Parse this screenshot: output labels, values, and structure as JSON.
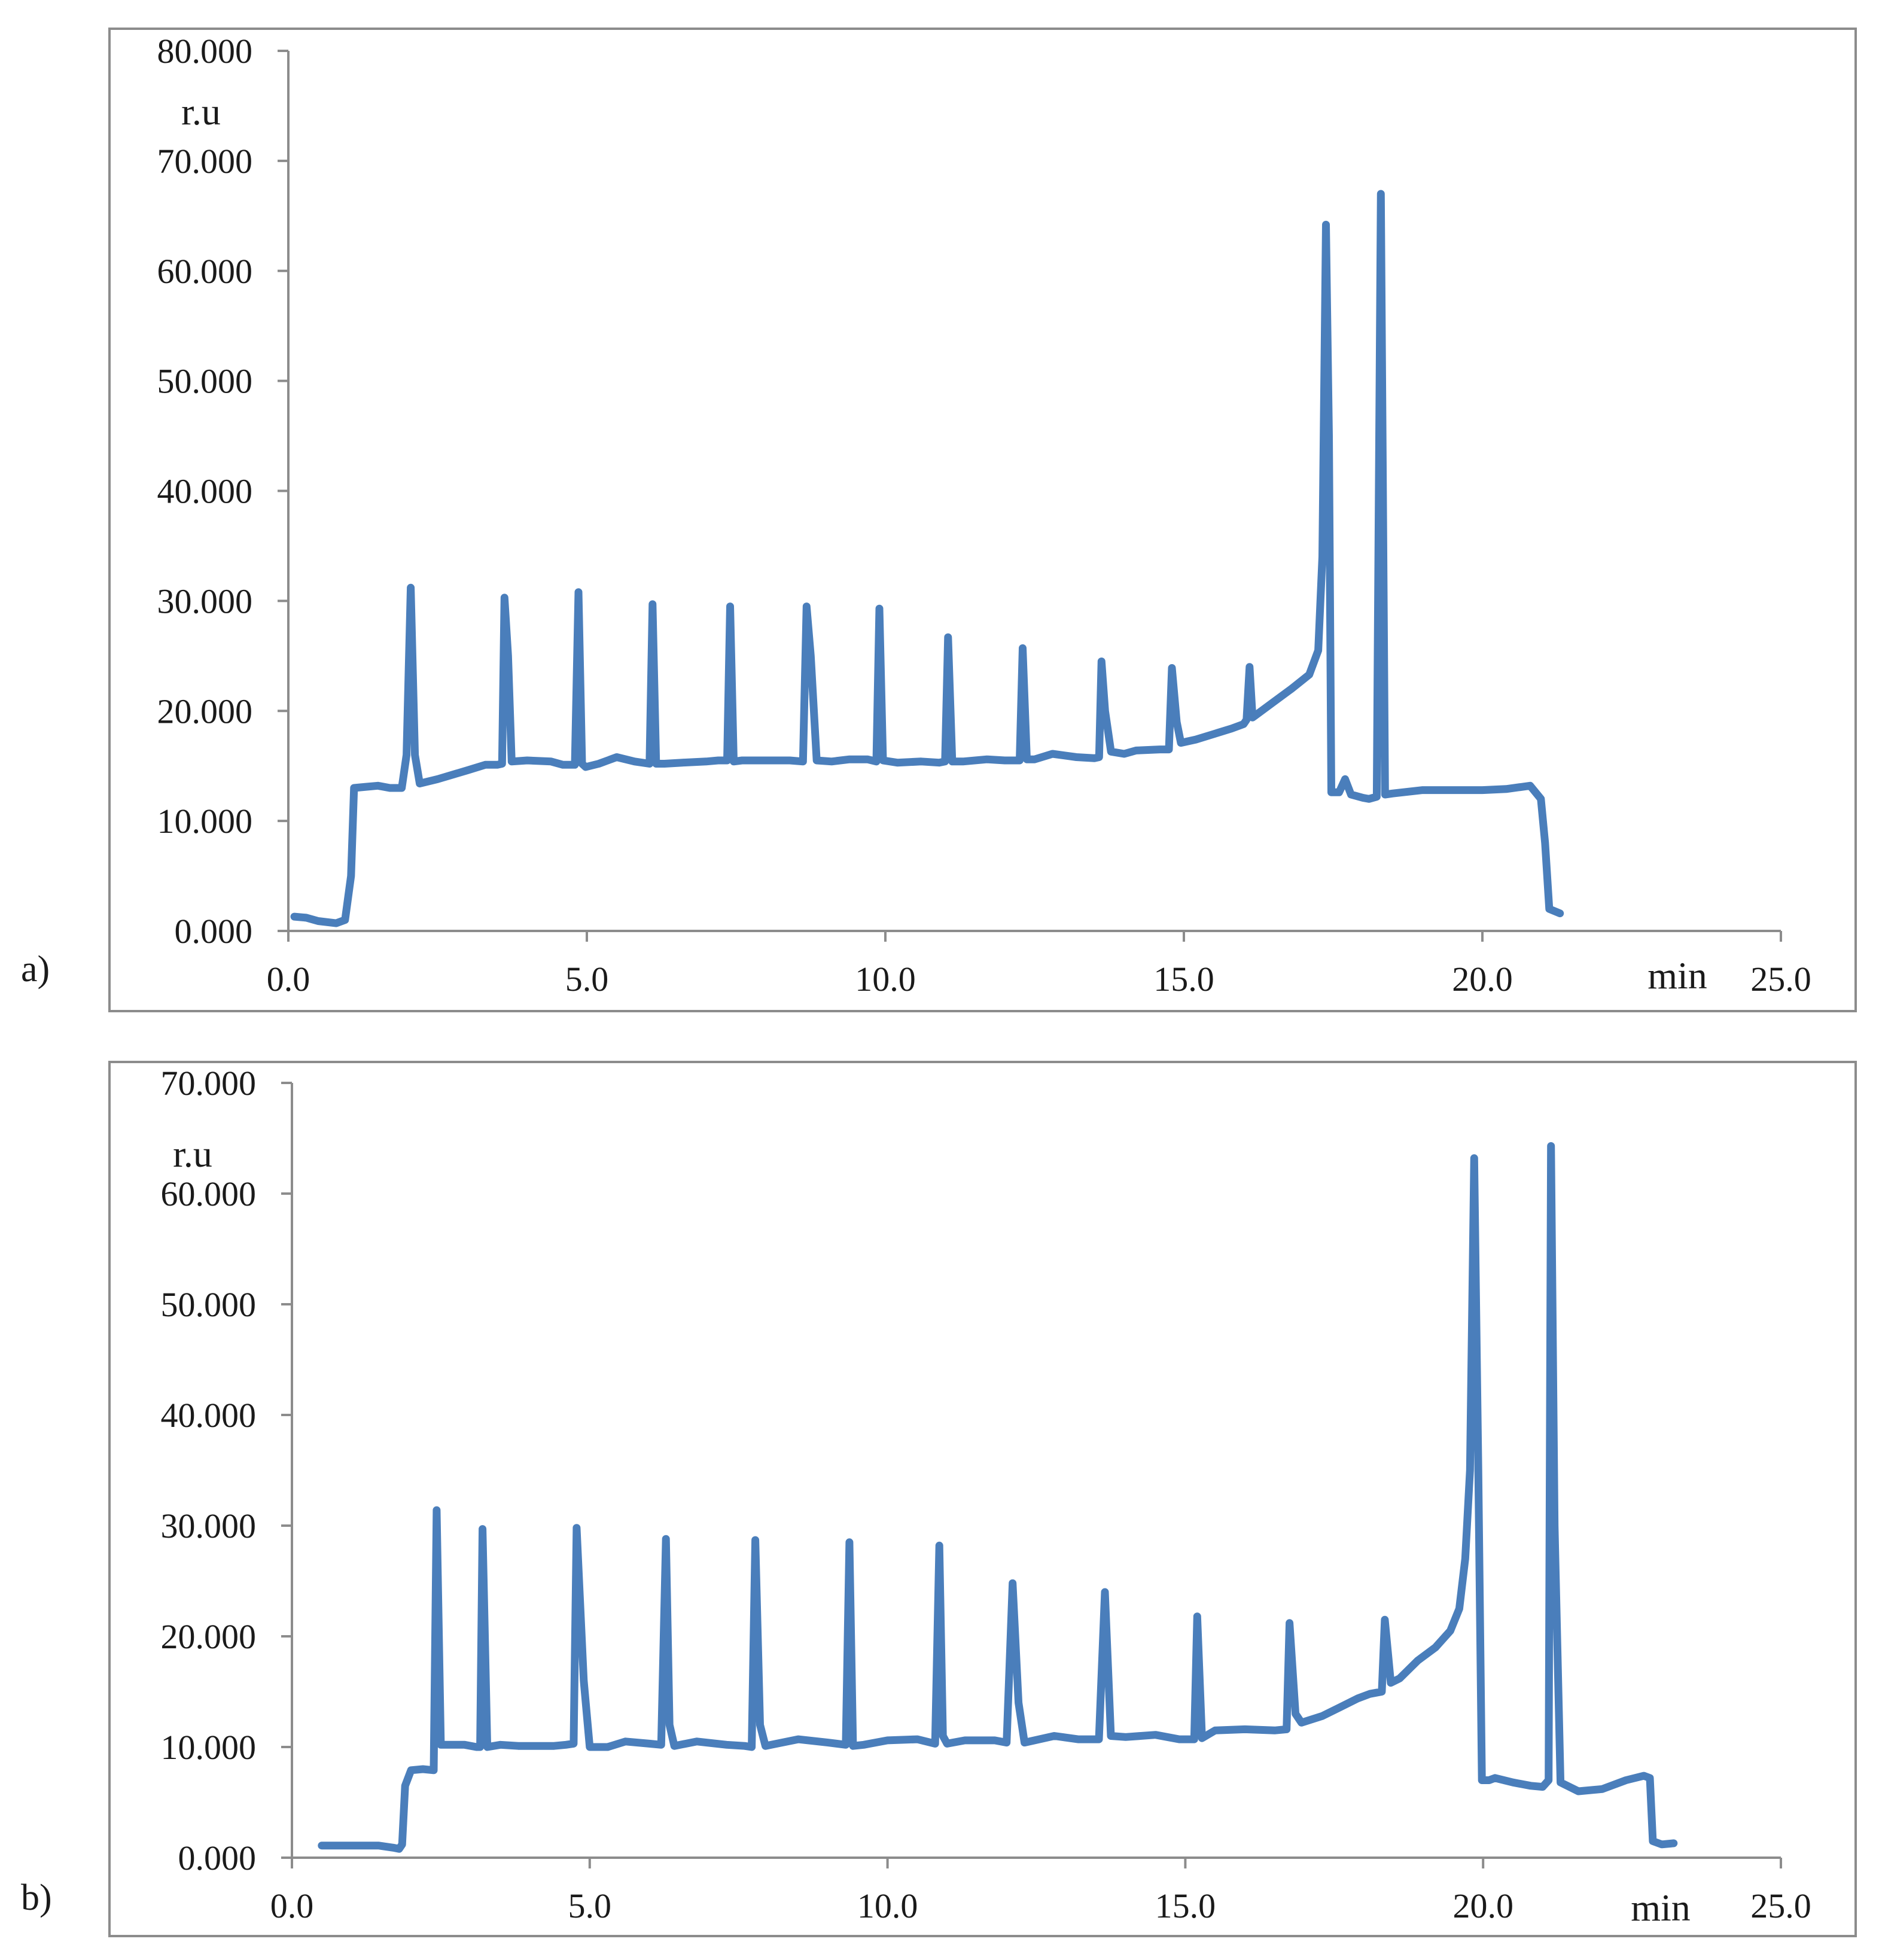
{
  "chart_data": [
    {
      "type": "line",
      "panel_label": "a)",
      "ylabel": "r.u",
      "xlabel": "min",
      "xlim": [
        0,
        25
      ],
      "ylim": [
        0,
        80
      ],
      "x_ticks": [
        "0.0",
        "5.0",
        "10.0",
        "15.0",
        "20.0",
        "25.0"
      ],
      "y_ticks": [
        "0.000",
        "10.000",
        "20.000",
        "30.000",
        "40.000",
        "50.000",
        "60.000",
        "70.000",
        "80.000"
      ],
      "color": "#4a7ebb",
      "series": [
        {
          "points": [
            [
              0.1,
              1.3
            ],
            [
              0.3,
              1.2
            ],
            [
              0.5,
              0.9
            ],
            [
              0.8,
              0.7
            ],
            [
              0.95,
              1.0
            ],
            [
              1.05,
              5
            ],
            [
              1.1,
              13
            ],
            [
              1.3,
              13.1
            ],
            [
              1.5,
              13.2
            ],
            [
              1.7,
              13.0
            ],
            [
              1.9,
              13.0
            ],
            [
              1.98,
              16
            ],
            [
              2.05,
              31.2
            ],
            [
              2.12,
              16
            ],
            [
              2.2,
              13.4
            ],
            [
              2.5,
              13.8
            ],
            [
              3.0,
              14.6
            ],
            [
              3.3,
              15.1
            ],
            [
              3.5,
              15.1
            ],
            [
              3.58,
              15.2
            ],
            [
              3.62,
              30.3
            ],
            [
              3.68,
              25
            ],
            [
              3.74,
              15.4
            ],
            [
              4.0,
              15.5
            ],
            [
              4.4,
              15.4
            ],
            [
              4.6,
              15.1
            ],
            [
              4.8,
              15.1
            ],
            [
              4.86,
              30.8
            ],
            [
              4.92,
              15.2
            ],
            [
              4.98,
              14.9
            ],
            [
              5.2,
              15.2
            ],
            [
              5.5,
              15.8
            ],
            [
              5.8,
              15.4
            ],
            [
              6.05,
              15.2
            ],
            [
              6.1,
              29.7
            ],
            [
              6.16,
              15.2
            ],
            [
              6.3,
              15.2
            ],
            [
              6.6,
              15.3
            ],
            [
              7.0,
              15.4
            ],
            [
              7.2,
              15.5
            ],
            [
              7.35,
              15.5
            ],
            [
              7.4,
              29.5
            ],
            [
              7.46,
              15.4
            ],
            [
              7.6,
              15.5
            ],
            [
              8.0,
              15.5
            ],
            [
              8.4,
              15.5
            ],
            [
              8.62,
              15.4
            ],
            [
              8.68,
              29.5
            ],
            [
              8.75,
              25
            ],
            [
              8.85,
              15.5
            ],
            [
              9.1,
              15.4
            ],
            [
              9.4,
              15.6
            ],
            [
              9.7,
              15.6
            ],
            [
              9.85,
              15.4
            ],
            [
              9.9,
              29.3
            ],
            [
              9.96,
              15.5
            ],
            [
              10.2,
              15.3
            ],
            [
              10.6,
              15.4
            ],
            [
              10.9,
              15.3
            ],
            [
              11.0,
              15.4
            ],
            [
              11.05,
              26.7
            ],
            [
              11.12,
              15.4
            ],
            [
              11.3,
              15.4
            ],
            [
              11.7,
              15.6
            ],
            [
              12.0,
              15.5
            ],
            [
              12.25,
              15.5
            ],
            [
              12.3,
              25.7
            ],
            [
              12.37,
              15.6
            ],
            [
              12.5,
              15.6
            ],
            [
              12.8,
              16.1
            ],
            [
              13.2,
              15.8
            ],
            [
              13.5,
              15.7
            ],
            [
              13.58,
              15.8
            ],
            [
              13.62,
              24.5
            ],
            [
              13.68,
              20
            ],
            [
              13.78,
              16.3
            ],
            [
              14.0,
              16.1
            ],
            [
              14.2,
              16.4
            ],
            [
              14.6,
              16.5
            ],
            [
              14.75,
              16.5
            ],
            [
              14.8,
              23.9
            ],
            [
              14.88,
              19
            ],
            [
              14.95,
              17.1
            ],
            [
              15.2,
              17.4
            ],
            [
              15.5,
              17.9
            ],
            [
              15.8,
              18.4
            ],
            [
              16.0,
              18.8
            ],
            [
              16.05,
              19.2
            ],
            [
              16.1,
              24.0
            ],
            [
              16.15,
              19.4
            ],
            [
              16.2,
              19.6
            ],
            [
              16.5,
              20.8
            ],
            [
              16.8,
              22.0
            ],
            [
              17.1,
              23.3
            ],
            [
              17.25,
              25.5
            ],
            [
              17.32,
              34
            ],
            [
              17.38,
              64.2
            ],
            [
              17.43,
              45
            ],
            [
              17.47,
              12.6
            ],
            [
              17.6,
              12.6
            ],
            [
              17.7,
              13.8
            ],
            [
              17.8,
              12.4
            ],
            [
              18.0,
              12.1
            ],
            [
              18.1,
              12.0
            ],
            [
              18.23,
              12.2
            ],
            [
              18.3,
              67.0
            ],
            [
              18.37,
              12.4
            ],
            [
              18.5,
              12.5
            ],
            [
              19.0,
              12.8
            ],
            [
              19.5,
              12.8
            ],
            [
              20.0,
              12.8
            ],
            [
              20.4,
              12.9
            ],
            [
              20.8,
              13.2
            ],
            [
              20.98,
              12.0
            ],
            [
              21.05,
              8
            ],
            [
              21.12,
              2.0
            ],
            [
              21.3,
              1.6
            ]
          ]
        }
      ]
    },
    {
      "type": "line",
      "panel_label": "b)",
      "ylabel": "r.u",
      "xlabel": "min",
      "xlim": [
        0,
        25
      ],
      "ylim": [
        0,
        70
      ],
      "x_ticks": [
        "0.0",
        "5.0",
        "10.0",
        "15.0",
        "20.0",
        "25.0"
      ],
      "y_ticks": [
        "0.000",
        "10.000",
        "20.000",
        "30.000",
        "40.000",
        "50.000",
        "60.000",
        "70.000"
      ],
      "color": "#4a7ebb",
      "series": [
        {
          "points": [
            [
              0.5,
              1.1
            ],
            [
              1.0,
              1.1
            ],
            [
              1.45,
              1.1
            ],
            [
              1.7,
              0.9
            ],
            [
              1.8,
              0.8
            ],
            [
              1.85,
              1.2
            ],
            [
              1.9,
              6.5
            ],
            [
              2.0,
              7.9
            ],
            [
              2.2,
              8.0
            ],
            [
              2.38,
              7.9
            ],
            [
              2.43,
              31.4
            ],
            [
              2.5,
              10.2
            ],
            [
              2.9,
              10.2
            ],
            [
              3.1,
              10.0
            ],
            [
              3.16,
              10.0
            ],
            [
              3.2,
              29.7
            ],
            [
              3.28,
              10.0
            ],
            [
              3.5,
              10.2
            ],
            [
              3.8,
              10.1
            ],
            [
              4.4,
              10.1
            ],
            [
              4.6,
              10.2
            ],
            [
              4.73,
              10.3
            ],
            [
              4.78,
              29.8
            ],
            [
              4.9,
              16
            ],
            [
              5.0,
              10.0
            ],
            [
              5.3,
              10.0
            ],
            [
              5.6,
              10.5
            ],
            [
              6.0,
              10.3
            ],
            [
              6.2,
              10.2
            ],
            [
              6.28,
              28.8
            ],
            [
              6.34,
              12
            ],
            [
              6.42,
              10.1
            ],
            [
              6.8,
              10.5
            ],
            [
              7.3,
              10.2
            ],
            [
              7.6,
              10.1
            ],
            [
              7.72,
              10.0
            ],
            [
              7.78,
              28.7
            ],
            [
              7.86,
              12
            ],
            [
              7.95,
              10.1
            ],
            [
              8.5,
              10.7
            ],
            [
              9.0,
              10.4
            ],
            [
              9.3,
              10.2
            ],
            [
              9.36,
              28.5
            ],
            [
              9.42,
              10.1
            ],
            [
              9.6,
              10.2
            ],
            [
              10.0,
              10.6
            ],
            [
              10.5,
              10.7
            ],
            [
              10.8,
              10.3
            ],
            [
              10.87,
              28.2
            ],
            [
              10.93,
              11
            ],
            [
              11.0,
              10.3
            ],
            [
              11.3,
              10.6
            ],
            [
              11.8,
              10.6
            ],
            [
              12.0,
              10.4
            ],
            [
              12.1,
              24.8
            ],
            [
              12.2,
              14
            ],
            [
              12.3,
              10.4
            ],
            [
              12.8,
              11.0
            ],
            [
              13.2,
              10.7
            ],
            [
              13.55,
              10.7
            ],
            [
              13.65,
              24.0
            ],
            [
              13.75,
              11.0
            ],
            [
              14.0,
              10.9
            ],
            [
              14.5,
              11.1
            ],
            [
              14.9,
              10.7
            ],
            [
              15.15,
              10.7
            ],
            [
              15.2,
              21.8
            ],
            [
              15.28,
              10.8
            ],
            [
              15.5,
              11.5
            ],
            [
              16.0,
              11.6
            ],
            [
              16.5,
              11.5
            ],
            [
              16.7,
              11.6
            ],
            [
              16.75,
              21.2
            ],
            [
              16.85,
              13
            ],
            [
              16.95,
              12.2
            ],
            [
              17.3,
              12.8
            ],
            [
              17.6,
              13.6
            ],
            [
              17.9,
              14.4
            ],
            [
              18.1,
              14.8
            ],
            [
              18.3,
              15.0
            ],
            [
              18.35,
              21.5
            ],
            [
              18.45,
              15.8
            ],
            [
              18.6,
              16.2
            ],
            [
              18.9,
              17.8
            ],
            [
              19.2,
              19.0
            ],
            [
              19.45,
              20.5
            ],
            [
              19.6,
              22.5
            ],
            [
              19.7,
              27
            ],
            [
              19.78,
              35
            ],
            [
              19.85,
              63.2
            ],
            [
              19.92,
              35
            ],
            [
              19.98,
              7.0
            ],
            [
              20.1,
              7.0
            ],
            [
              20.2,
              7.2
            ],
            [
              20.5,
              6.8
            ],
            [
              20.8,
              6.5
            ],
            [
              21.0,
              6.4
            ],
            [
              21.1,
              7.0
            ],
            [
              21.14,
              64.3
            ],
            [
              21.2,
              30
            ],
            [
              21.3,
              6.8
            ],
            [
              21.6,
              6.0
            ],
            [
              22.0,
              6.2
            ],
            [
              22.4,
              7.0
            ],
            [
              22.7,
              7.4
            ],
            [
              22.8,
              7.2
            ],
            [
              22.85,
              1.5
            ],
            [
              23.0,
              1.2
            ],
            [
              23.2,
              1.3
            ]
          ]
        }
      ]
    }
  ]
}
